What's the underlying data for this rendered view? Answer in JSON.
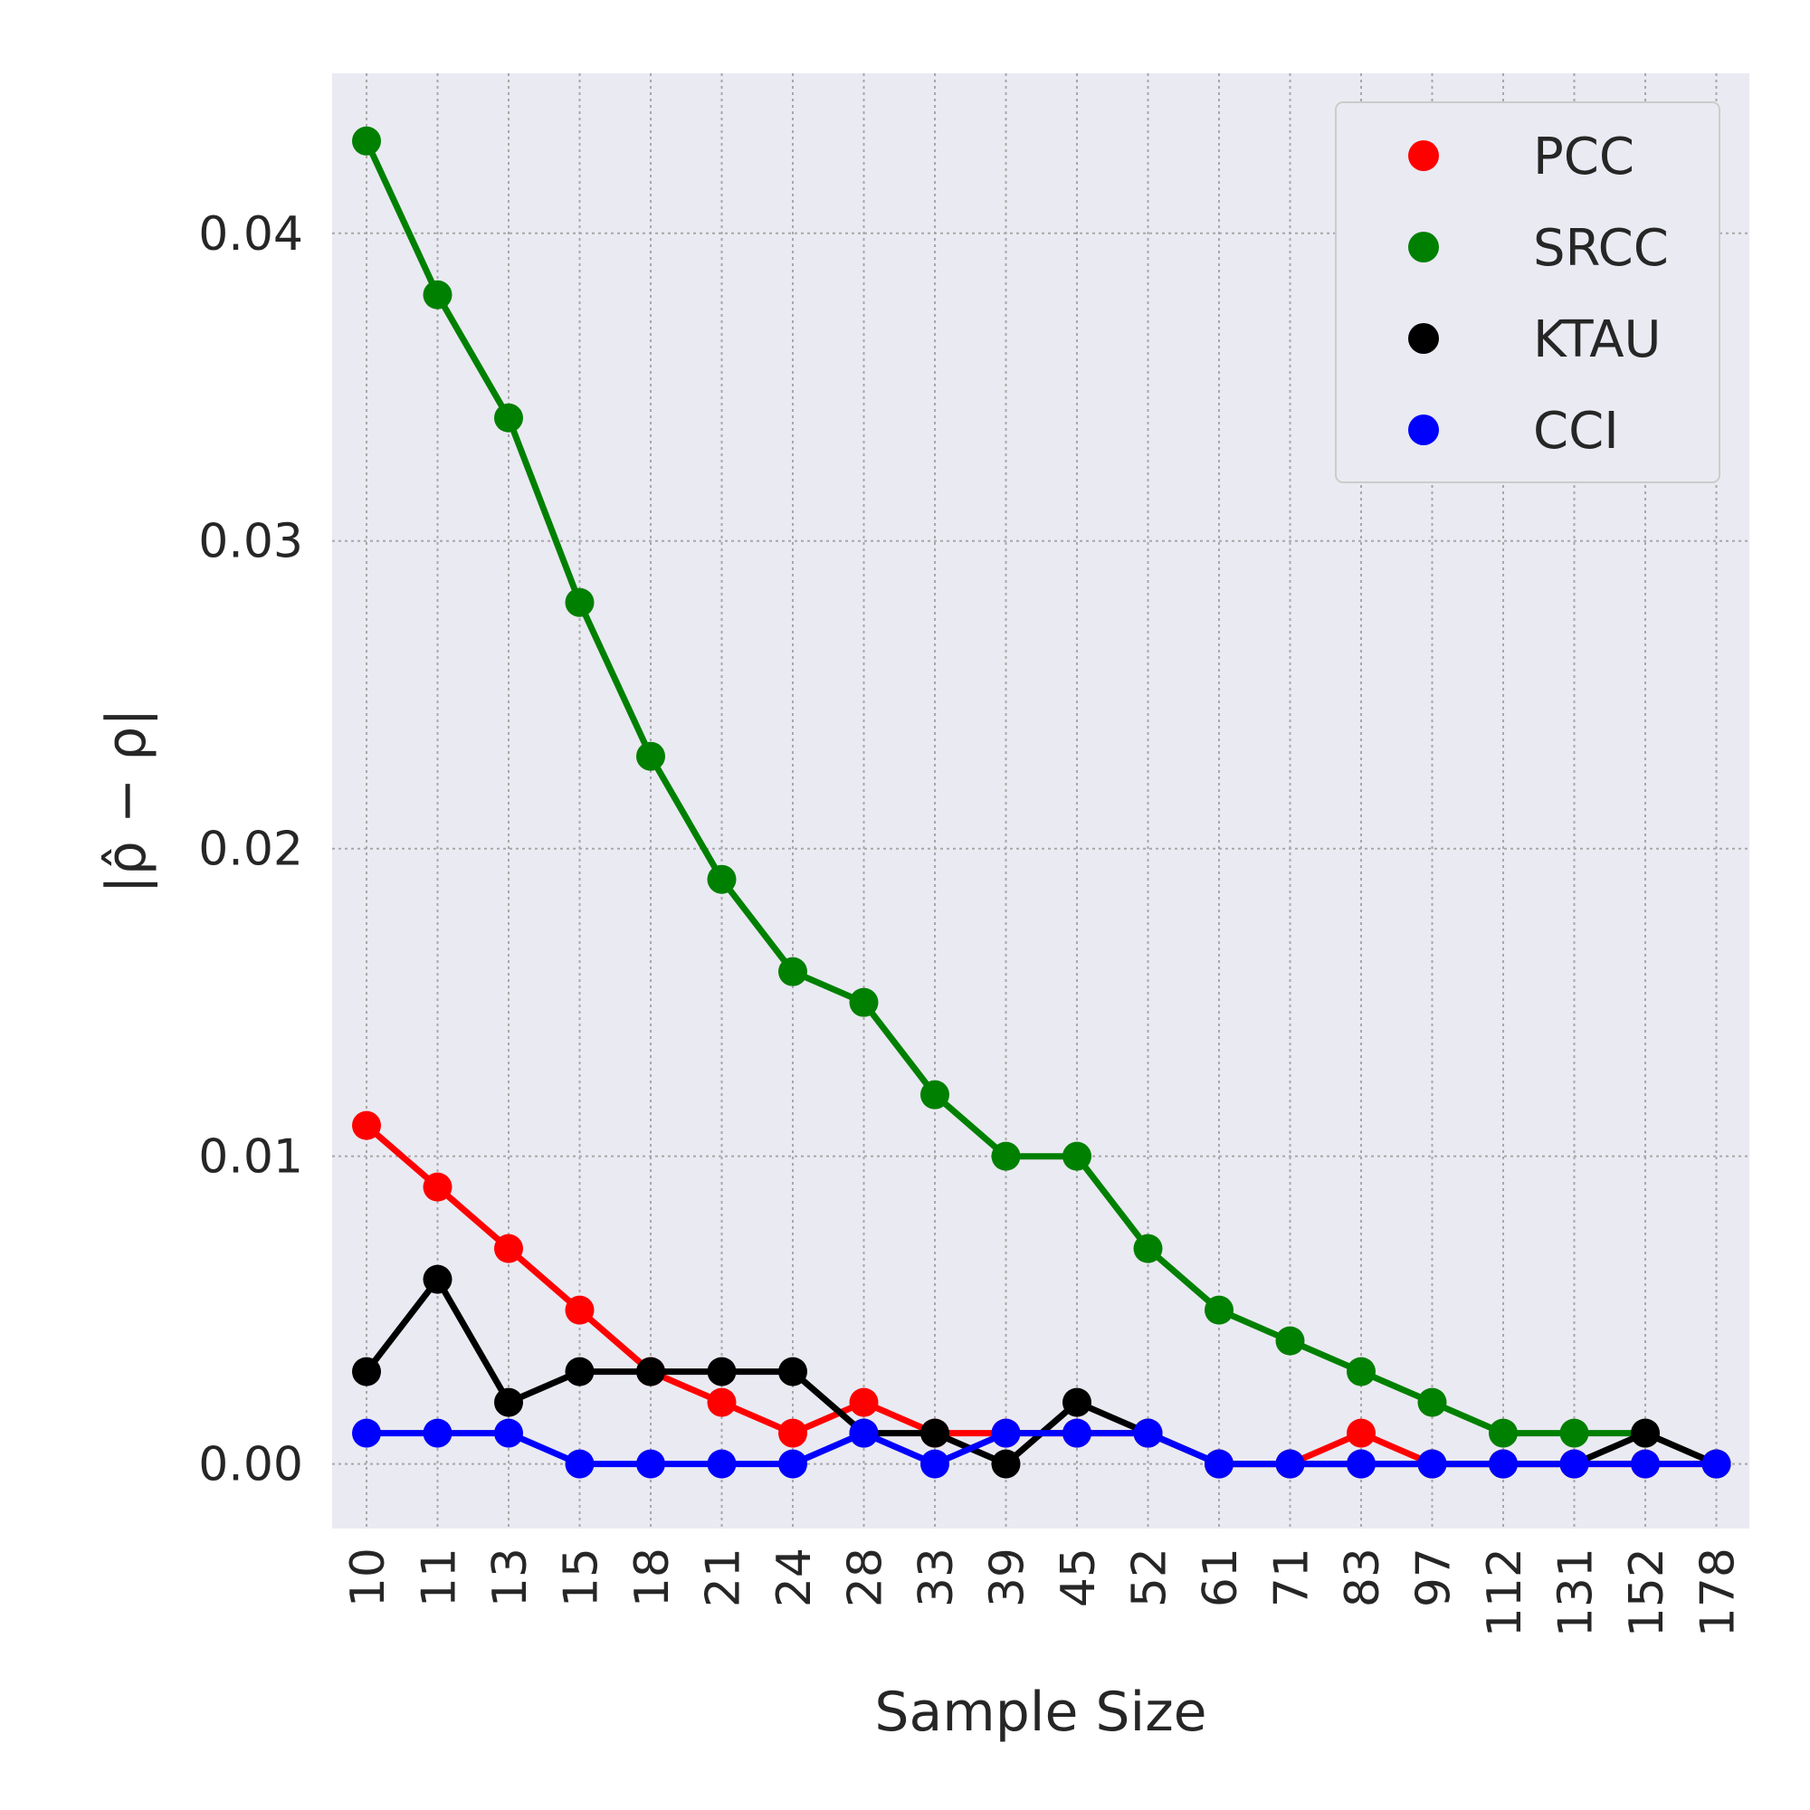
{
  "chart_data": {
    "type": "line",
    "title": "",
    "xlabel": "Sample Size",
    "ylabel": "|ρ̂ − ρ|",
    "categories": [
      "10",
      "11",
      "13",
      "15",
      "18",
      "21",
      "24",
      "28",
      "33",
      "39",
      "45",
      "52",
      "61",
      "71",
      "83",
      "97",
      "112",
      "131",
      "152",
      "178"
    ],
    "yticks": [
      "0.00",
      "0.01",
      "0.02",
      "0.03",
      "0.04"
    ],
    "ylim": [
      -0.0021,
      0.0452
    ],
    "grid": true,
    "legend_position": "top-right",
    "series": [
      {
        "name": "PCC",
        "color": "#ff0000",
        "values": [
          0.011,
          0.009,
          0.007,
          0.005,
          0.003,
          0.002,
          0.001,
          0.002,
          0.001,
          0.001,
          0.001,
          0.001,
          0.0,
          0.0,
          0.001,
          0.0,
          0.0,
          0.0,
          0.0,
          0.0
        ]
      },
      {
        "name": "SRCC",
        "color": "#008000",
        "values": [
          0.043,
          0.038,
          0.034,
          0.028,
          0.023,
          0.019,
          0.016,
          0.015,
          0.012,
          0.01,
          0.01,
          0.007,
          0.005,
          0.004,
          0.003,
          0.002,
          0.001,
          0.001,
          0.001,
          0.0
        ]
      },
      {
        "name": "KTAU",
        "color": "#000000",
        "values": [
          0.003,
          0.006,
          0.002,
          0.003,
          0.003,
          0.003,
          0.003,
          0.001,
          0.001,
          0.0,
          0.002,
          0.001,
          0.0,
          0.0,
          0.0,
          0.0,
          0.0,
          0.0,
          0.001,
          0.0
        ]
      },
      {
        "name": "CCI",
        "color": "#0000ff",
        "values": [
          0.001,
          0.001,
          0.001,
          0.0,
          0.0,
          0.0,
          0.0,
          0.001,
          0.0,
          0.001,
          0.001,
          0.001,
          0.0,
          0.0,
          0.0,
          0.0,
          0.0,
          0.0,
          0.0,
          0.0
        ]
      }
    ]
  }
}
